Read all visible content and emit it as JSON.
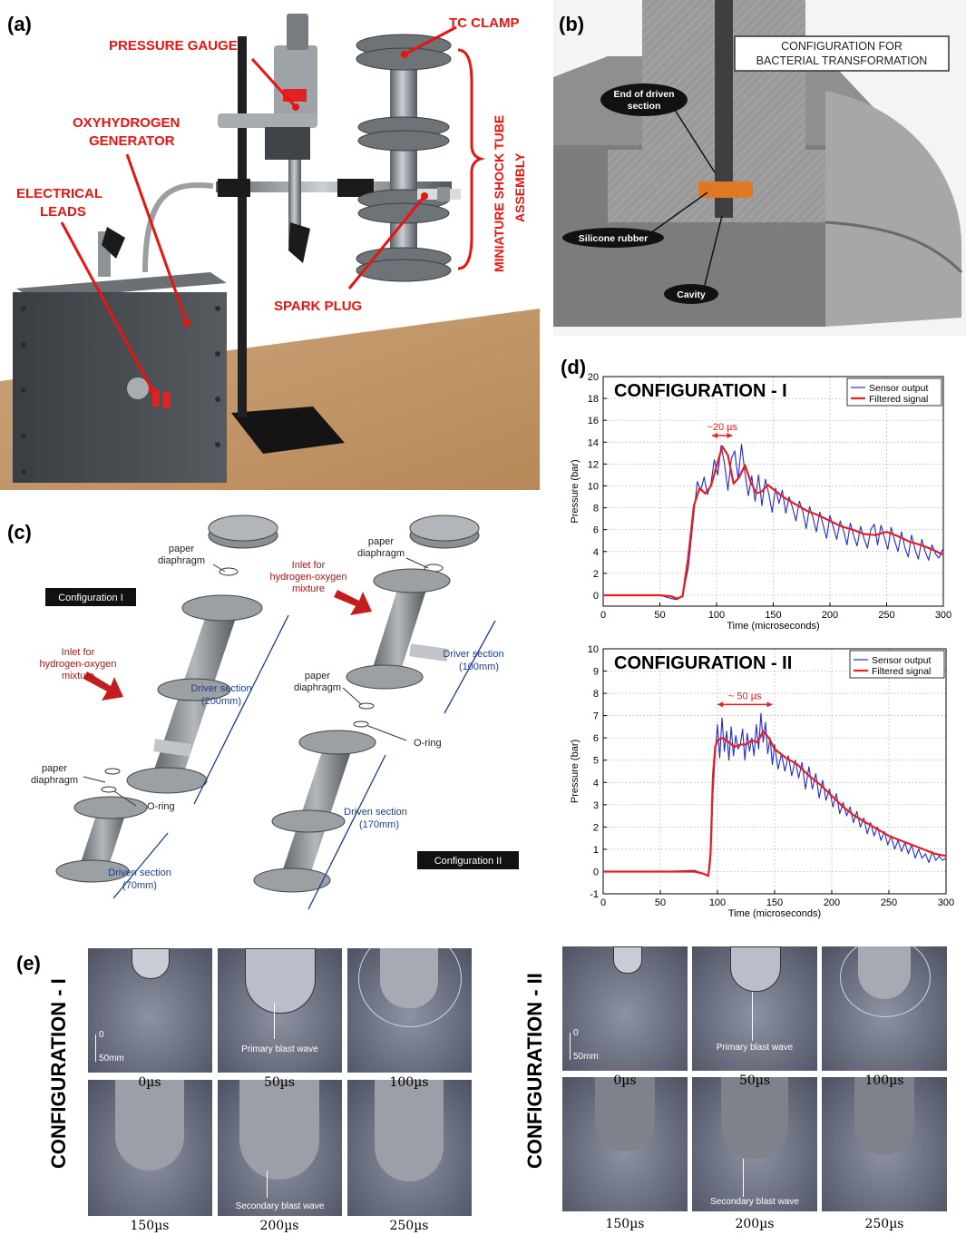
{
  "panel_a": {
    "label": "(a)",
    "callouts": {
      "pressure_gauge": "PRESSURE GAUGE",
      "tc_clamp": "TC CLAMP",
      "oxy_line1": "OXYHYDROGEN",
      "oxy_line2": "GENERATOR",
      "elec_line1": "ELECTRICAL",
      "elec_line2": "LEADS",
      "spark_plug": "SPARK PLUG",
      "assembly_line1": "MINIATURE SHOCK TUBE",
      "assembly_line2": "ASSEMBLY"
    }
  },
  "panel_b": {
    "label": "(b)",
    "box_line1": "CONFIGURATION FOR",
    "box_line2": "BACTERIAL TRANSFORMATION",
    "end_line1": "End of driven",
    "end_line2": "section",
    "silicone": "Silicone rubber",
    "cavity": "Cavity"
  },
  "panel_c": {
    "label": "(c)",
    "config1": "Configuration I",
    "config2": "Configuration II",
    "paper": "paper",
    "diaphragm": "diaphragm",
    "inlet_line1": "Inlet for",
    "inlet_line2": "hydrogen-oxygen",
    "inlet_line3": "mixture",
    "oring": "O-ring",
    "driver_label": "Driver section",
    "driver1_len": "(200mm)",
    "driver2_len": "(100mm)",
    "driven_label": "Driven section",
    "driven1_len": "(70mm)",
    "driven2_len": "(170mm)"
  },
  "panel_d": {
    "label": "(d)"
  },
  "chart_data": [
    {
      "type": "line",
      "title": "CONFIGURATION - I",
      "xlabel": "Time (microseconds)",
      "ylabel": "Pressure (bar)",
      "xlim": [
        0,
        300
      ],
      "ylim": [
        -1,
        20
      ],
      "xticks": [
        0,
        50,
        100,
        150,
        200,
        250,
        300
      ],
      "yticks": [
        0,
        2,
        4,
        6,
        8,
        10,
        12,
        14,
        16,
        18,
        20
      ],
      "grid": true,
      "legend_position": "top-right",
      "annotation": "~20 µs",
      "annotation_range": [
        96,
        114
      ],
      "annotation_y": 14.6,
      "series": [
        {
          "name": "Sensor output",
          "color": "#1f2bd6",
          "x": [
            0,
            50,
            60,
            65,
            70,
            75,
            80,
            83,
            86,
            89,
            92,
            95,
            98,
            101,
            104,
            107,
            110,
            113,
            116,
            119,
            122,
            125,
            128,
            131,
            134,
            137,
            140,
            143,
            146,
            149,
            152,
            155,
            158,
            161,
            164,
            167,
            170,
            173,
            176,
            179,
            182,
            185,
            188,
            191,
            194,
            197,
            200,
            203,
            206,
            209,
            212,
            215,
            218,
            221,
            224,
            227,
            230,
            233,
            236,
            239,
            242,
            245,
            248,
            251,
            254,
            257,
            260,
            263,
            266,
            269,
            272,
            275,
            278,
            281,
            284,
            287,
            290,
            293,
            296,
            300
          ],
          "y": [
            0,
            0,
            -0.3,
            -0.4,
            -0.1,
            2.5,
            7.5,
            10.4,
            9.6,
            10.8,
            9.2,
            10.2,
            12.4,
            11.0,
            13.7,
            12.0,
            9.6,
            12.5,
            13.2,
            10.6,
            13.8,
            11.2,
            9.1,
            10.9,
            8.6,
            11.0,
            8.2,
            10.6,
            9.3,
            7.6,
            9.8,
            8.4,
            9.6,
            7.5,
            9.0,
            8.0,
            6.8,
            8.6,
            7.7,
            6.1,
            8.1,
            7.1,
            5.8,
            7.6,
            6.4,
            5.2,
            7.3,
            6.2,
            5.1,
            6.8,
            5.9,
            4.6,
            6.6,
            5.4,
            4.5,
            6.3,
            5.2,
            4.3,
            6.0,
            6.5,
            4.6,
            6.4,
            5.3,
            4.2,
            6.2,
            5.0,
            4.0,
            5.8,
            4.4,
            3.5,
            5.5,
            4.2,
            3.3,
            5.1,
            4.0,
            3.2,
            4.6,
            3.8,
            3.4,
            4.3
          ]
        },
        {
          "name": "Filtered signal",
          "color": "#e81e1e",
          "x": [
            0,
            50,
            60,
            65,
            70,
            75,
            80,
            85,
            90,
            95,
            100,
            105,
            110,
            115,
            120,
            125,
            130,
            135,
            140,
            145,
            150,
            160,
            170,
            180,
            190,
            200,
            210,
            220,
            230,
            240,
            250,
            260,
            270,
            280,
            290,
            300
          ],
          "y": [
            0,
            0,
            -0.1,
            -0.3,
            -0.1,
            3.5,
            8.2,
            9.8,
            9.3,
            10.0,
            11.8,
            13.6,
            12.8,
            10.2,
            10.8,
            11.9,
            10.4,
            9.3,
            9.5,
            10.1,
            9.7,
            8.9,
            8.3,
            7.7,
            7.3,
            6.8,
            6.3,
            6.0,
            5.6,
            5.5,
            5.8,
            5.4,
            4.9,
            4.6,
            4.2,
            3.7
          ]
        }
      ]
    },
    {
      "type": "line",
      "title": "CONFIGURATION - II",
      "xlabel": "Time (microseconds)",
      "ylabel": "Pressure (bar)",
      "xlim": [
        0,
        300
      ],
      "ylim": [
        -1,
        10
      ],
      "xticks": [
        0,
        50,
        100,
        150,
        200,
        250,
        300
      ],
      "yticks": [
        -1,
        0,
        1,
        2,
        3,
        4,
        5,
        6,
        7,
        8,
        9,
        10
      ],
      "grid": true,
      "legend_position": "top-right",
      "annotation": "~ 50 µs",
      "annotation_range": [
        100,
        148
      ],
      "annotation_y": 7.5,
      "series": [
        {
          "name": "Sensor output",
          "color": "#1f2bd6",
          "x": [
            0,
            50,
            80,
            88,
            92,
            94,
            96,
            98,
            100,
            102,
            104,
            106,
            108,
            110,
            112,
            114,
            116,
            118,
            120,
            122,
            124,
            126,
            128,
            130,
            132,
            134,
            136,
            138,
            140,
            142,
            144,
            146,
            148,
            150,
            153,
            156,
            159,
            162,
            165,
            168,
            171,
            174,
            177,
            180,
            183,
            186,
            189,
            192,
            195,
            198,
            201,
            204,
            207,
            210,
            213,
            216,
            219,
            222,
            225,
            228,
            231,
            234,
            237,
            240,
            243,
            246,
            249,
            252,
            255,
            258,
            261,
            264,
            267,
            270,
            273,
            276,
            279,
            282,
            285,
            288,
            291,
            294,
            297,
            300
          ],
          "y": [
            0,
            0,
            0.05,
            -0.1,
            -0.2,
            0.5,
            3.5,
            5.3,
            6.6,
            5.1,
            6.9,
            5.4,
            6.3,
            5.0,
            6.5,
            5.2,
            6.1,
            5.5,
            5.7,
            6.4,
            5.0,
            6.2,
            5.4,
            6.0,
            5.2,
            6.6,
            5.5,
            7.1,
            5.8,
            6.7,
            5.3,
            6.0,
            4.8,
            5.7,
            4.6,
            5.3,
            4.5,
            5.2,
            4.3,
            5.0,
            4.2,
            4.9,
            3.7,
            4.7,
            3.7,
            4.4,
            3.3,
            4.1,
            3.2,
            3.7,
            2.9,
            3.5,
            2.6,
            3.1,
            2.5,
            2.9,
            2.2,
            2.7,
            2.0,
            2.4,
            1.7,
            2.2,
            1.6,
            2.0,
            1.4,
            1.8,
            1.2,
            1.6,
            1.0,
            1.4,
            0.9,
            1.3,
            0.8,
            1.2,
            0.6,
            1.0,
            0.6,
            0.8,
            0.4,
            0.9,
            0.5,
            0.7,
            0.5,
            0.6
          ]
        },
        {
          "name": "Filtered signal",
          "color": "#e81e1e",
          "x": [
            0,
            50,
            80,
            88,
            92,
            94,
            96,
            98,
            100,
            105,
            110,
            115,
            120,
            125,
            130,
            135,
            140,
            145,
            150,
            160,
            170,
            180,
            190,
            200,
            210,
            220,
            230,
            240,
            250,
            260,
            270,
            280,
            290,
            300
          ],
          "y": [
            0,
            0,
            0,
            -0.1,
            -0.2,
            0.8,
            4.3,
            5.6,
            5.9,
            6.0,
            5.8,
            5.6,
            5.7,
            5.7,
            5.9,
            5.8,
            6.3,
            6.0,
            5.5,
            5.1,
            4.8,
            4.3,
            3.9,
            3.4,
            2.9,
            2.5,
            2.2,
            1.9,
            1.6,
            1.4,
            1.2,
            1.0,
            0.8,
            0.7
          ]
        }
      ]
    }
  ],
  "panel_e": {
    "label": "(e)",
    "config1_label": "CONFIGURATION - I",
    "config2_label": "CONFIGURATION - II",
    "scale_zero": "0",
    "scale_len": "50mm",
    "primary": "Primary blast wave",
    "secondary": "Secondary blast wave",
    "times": [
      "0µs",
      "50µs",
      "100µs",
      "150µs",
      "200µs",
      "250µs"
    ]
  }
}
